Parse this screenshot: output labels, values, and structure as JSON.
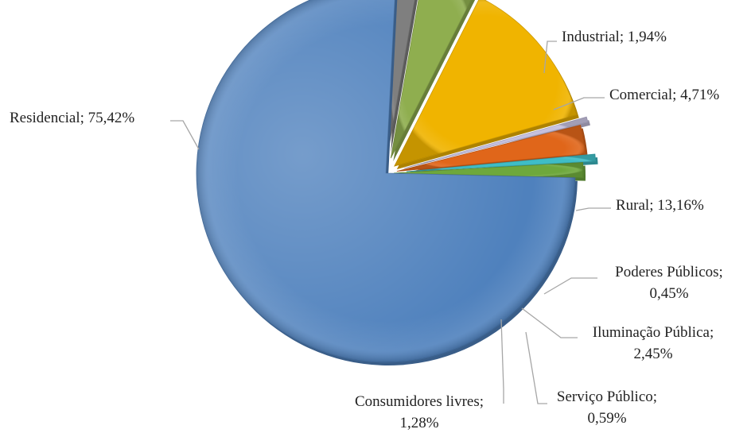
{
  "chart_data": {
    "type": "pie",
    "title": "",
    "slices": [
      {
        "name": "Industrial",
        "value": 1.94,
        "label": "Industrial; 1,94%",
        "color": "#7f7f7f"
      },
      {
        "name": "Comercial",
        "value": 4.71,
        "label": "Comercial; 4,71%",
        "color": "#8fae4f"
      },
      {
        "name": "Rural",
        "value": 13.16,
        "label": "Rural; 13,16%",
        "color": "#f0b400"
      },
      {
        "name": "Poderes Públicos",
        "value": 0.45,
        "label": "Poderes Públicos; 0,45%",
        "color": "#c5c0de"
      },
      {
        "name": "Iluminação Pública",
        "value": 2.45,
        "label": "Iluminação Pública; 2,45%",
        "color": "#e0661a"
      },
      {
        "name": "Serviço Público",
        "value": 0.59,
        "label": "Serviço Público; 0,59%",
        "color": "#3fbdc6"
      },
      {
        "name": "Consumidores livres",
        "value": 1.28,
        "label": "Consumidores livres; 1,28%",
        "color": "#6ea83c"
      },
      {
        "name": "Residencial",
        "value": 75.42,
        "label": "Residencial; 75,42%",
        "color": "#4f81bd"
      }
    ],
    "legend": "none",
    "data_labels": "outside with leader lines"
  }
}
